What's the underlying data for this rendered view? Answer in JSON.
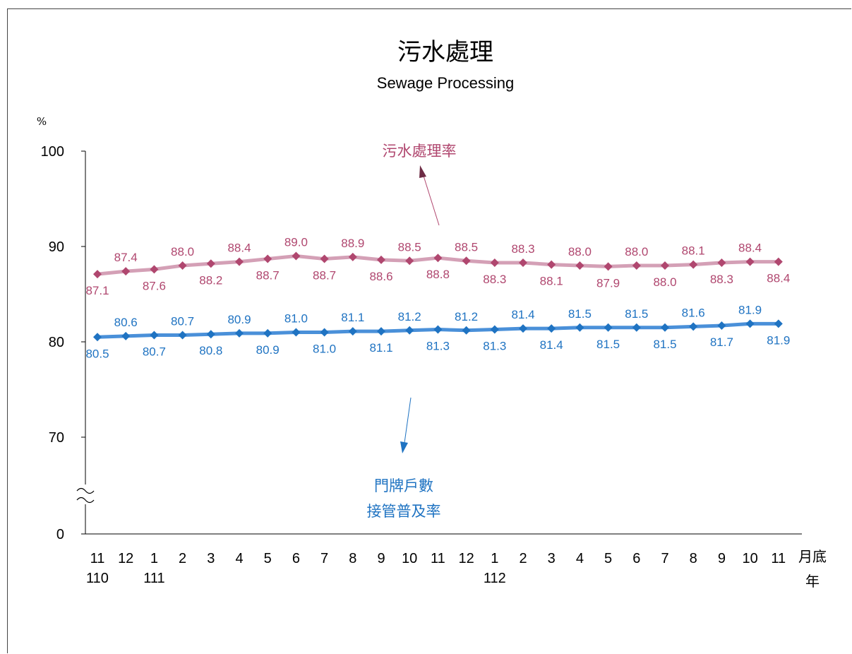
{
  "chart_data": {
    "type": "line",
    "title": "污水處理",
    "subtitle": "Sewage Processing",
    "ylabel": "%",
    "yticks": [
      "100",
      "90",
      "80",
      "70",
      "0"
    ],
    "ylim": [
      70,
      100
    ],
    "axis_break": true,
    "categories": [
      "11",
      "12",
      "1",
      "2",
      "3",
      "4",
      "5",
      "6",
      "7",
      "8",
      "9",
      "10",
      "11",
      "12",
      "1",
      "2",
      "3",
      "4",
      "5",
      "6",
      "7",
      "8",
      "9",
      "10",
      "11"
    ],
    "year_labels": [
      {
        "index": 0,
        "label": "110"
      },
      {
        "index": 2,
        "label": "111"
      },
      {
        "index": 14,
        "label": "112"
      }
    ],
    "x_unit_month": "月底",
    "x_unit_year": "年",
    "series": [
      {
        "name": "污水處理率",
        "color": "#b0476f",
        "line_color": "#d4a0b6",
        "values": [
          87.1,
          87.4,
          87.6,
          88.0,
          88.2,
          88.4,
          88.7,
          89.0,
          88.7,
          88.9,
          88.6,
          88.5,
          88.8,
          88.5,
          88.3,
          88.3,
          88.1,
          88.0,
          87.9,
          88.0,
          88.0,
          88.1,
          88.3,
          88.4,
          88.4
        ]
      },
      {
        "name": "門牌戶數接管普及率",
        "name_lines": [
          "門牌戶數",
          "接管普及率"
        ],
        "color": "#1f73c2",
        "line_color": "#4a90d9",
        "values": [
          80.5,
          80.6,
          80.7,
          80.7,
          80.8,
          80.9,
          80.9,
          81.0,
          81.0,
          81.1,
          81.1,
          81.2,
          81.3,
          81.2,
          81.3,
          81.4,
          81.4,
          81.5,
          81.5,
          81.5,
          81.5,
          81.6,
          81.7,
          81.9,
          81.9
        ]
      }
    ],
    "grid": false,
    "legend": "annotation-arrows"
  }
}
